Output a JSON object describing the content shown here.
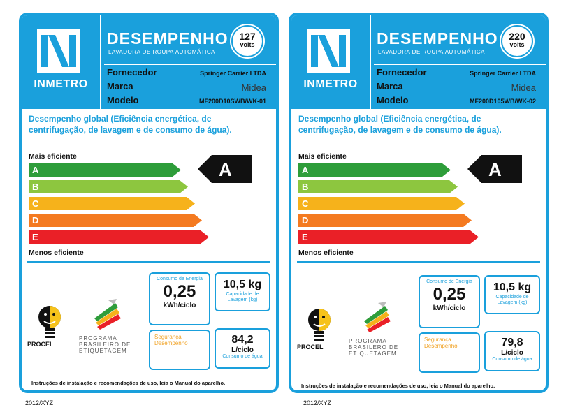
{
  "labels": [
    {
      "logo_text": "INMETRO",
      "title": "DESEMPENHO",
      "subtitle": "LAVADORA DE ROUPA AUTOMÁTICA",
      "volts_number": "127",
      "volts_unit": "volts",
      "fields": {
        "fornecedor_label": "Fornecedor",
        "fornecedor_value": "Springer Carrier LTDA",
        "marca_label": "Marca",
        "marca_value": "Midea",
        "modelo_label": "Modelo",
        "modelo_value": "MF200D10SWB/WK-01"
      },
      "performance_text": "Desempenho global (Eficiência energética, de centrifugação, de lavagem e de consumo de água).",
      "more_efficient": "Mais eficiente",
      "less_efficient": "Menos eficiente",
      "bars": [
        {
          "letter": "A",
          "color": "#2e9d3a"
        },
        {
          "letter": "B",
          "color": "#8dc63f"
        },
        {
          "letter": "C",
          "color": "#f6b21b"
        },
        {
          "letter": "D",
          "color": "#f47a20"
        },
        {
          "letter": "E",
          "color": "#ea2027"
        }
      ],
      "rating": "A",
      "energy": {
        "caption": "Consumo de Energia",
        "value": "0,25",
        "unit": "kWh/ciclo"
      },
      "capacity": {
        "value": "10,5 kg",
        "caption": "Capacidade de Lavagem (kg)"
      },
      "safety_caption": "Segurança Desempenho",
      "water": {
        "value": "84,2",
        "unit": "L/ciclo",
        "caption": "Consumo de água"
      },
      "procel_text": "PROCEL",
      "program_text": "PROGRAMA BRASILEIRO DE ETIQUETAGEM",
      "footer": "Instruções de instalação e recomendações de uso, leia o Manual do aparelho.",
      "outside_text": "2012/XYZ"
    },
    {
      "logo_text": "INMETRO",
      "title": "DESEMPENHO",
      "subtitle": "LAVADORA DE ROUPA AUTOMÁTICA",
      "volts_number": "220",
      "volts_unit": "volts",
      "fields": {
        "fornecedor_label": "Fornecedor",
        "fornecedor_value": "Springer Carrier LTDA",
        "marca_label": "Marca",
        "marca_value": "Midea",
        "modelo_label": "Modelo",
        "modelo_value": "MF200D105WB/WK-02"
      },
      "performance_text": "Desempenho global (Eficiência energética, de centrifugação, de lavagem e de consumo de água).",
      "more_efficient": "Mais eficiente",
      "less_efficient": "Menos eficiente",
      "bars": [
        {
          "letter": "A",
          "color": "#2e9d3a"
        },
        {
          "letter": "B",
          "color": "#8dc63f"
        },
        {
          "letter": "C",
          "color": "#f6b21b"
        },
        {
          "letter": "D",
          "color": "#f47a20"
        },
        {
          "letter": "E",
          "color": "#ea2027"
        }
      ],
      "rating": "A",
      "energy": {
        "caption": "Consumo de Energia",
        "value": "0,25",
        "unit": "kWh/ciclo"
      },
      "capacity": {
        "value": "10,5 kg",
        "caption": "Capacidade de Lavagem (kg)"
      },
      "safety_caption": "Segurança Desempenho",
      "water": {
        "value": "79,8",
        "unit": "L/ciclo",
        "caption": "Consumo de água"
      },
      "procel_text": "PROCEL",
      "program_text": "PROGRAMA BRASILERO DE ETIQUETAGEM",
      "footer": "Instruções de instalação e recomendações de uso, leia o Manual do aparelho.",
      "outside_text": "2012/XYZ"
    }
  ],
  "colors": {
    "brand_blue": "#1aa0dc",
    "rating_black": "#111111"
  }
}
